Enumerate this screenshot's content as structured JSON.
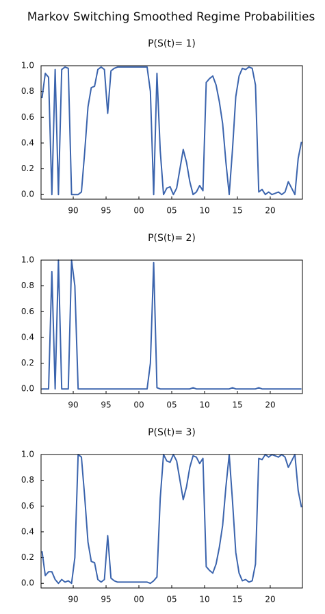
{
  "title": "Markov Switching Smoothed Regime Probabilities",
  "chart_data": [
    {
      "type": "line",
      "title": "P(S(t)= 1)",
      "x": [
        1985.25,
        1985.75,
        1986.25,
        1986.75,
        1987.25,
        1987.75,
        1988.25,
        1988.75,
        1989.25,
        1989.75,
        1990.25,
        1990.75,
        1991.25,
        1991.75,
        1992.25,
        1992.75,
        1993.25,
        1993.75,
        1994.25,
        1994.75,
        1995.25,
        1995.75,
        1996.25,
        1996.75,
        1997.25,
        1997.75,
        1998.25,
        1998.75,
        1999.25,
        1999.75,
        2000.25,
        2000.75,
        2001.25,
        2001.75,
        2002.25,
        2002.75,
        2003.25,
        2003.75,
        2004.25,
        2004.75,
        2005.25,
        2005.75,
        2006.25,
        2006.75,
        2007.25,
        2007.75,
        2008.25,
        2008.75,
        2009.25,
        2009.75,
        2010.25,
        2010.75,
        2011.25,
        2011.75,
        2012.25,
        2012.75,
        2013.25,
        2013.75,
        2014.25,
        2014.75,
        2015.25,
        2015.75,
        2016.25,
        2016.75,
        2017.25,
        2017.75,
        2018.25,
        2018.75,
        2019.25,
        2019.75,
        2020.25,
        2020.75,
        2021.25,
        2021.75,
        2022.25,
        2022.75,
        2023.25,
        2023.75,
        2024.25,
        2024.75
      ],
      "series": [
        {
          "color": "#3b64ad",
          "values": [
            0.75,
            0.94,
            0.91,
            0,
            0.97,
            0,
            0.97,
            0.99,
            0.98,
            0,
            0,
            0,
            0.02,
            0.33,
            0.68,
            0.83,
            0.84,
            0.97,
            0.99,
            0.97,
            0.63,
            0.96,
            0.98,
            0.99,
            0.99,
            0.99,
            0.99,
            0.99,
            0.99,
            0.99,
            0.99,
            0.99,
            0.99,
            0.8,
            0,
            0.94,
            0.34,
            0,
            0.05,
            0.06,
            0,
            0.05,
            0.2,
            0.35,
            0.25,
            0.1,
            0,
            0.02,
            0.07,
            0.03,
            0.87,
            0.9,
            0.92,
            0.85,
            0.72,
            0.55,
            0.25,
            0,
            0.35,
            0.76,
            0.92,
            0.98,
            0.97,
            0.99,
            0.98,
            0.85,
            0.02,
            0.04,
            0,
            0.02,
            0,
            0.01,
            0.02,
            0,
            0.02,
            0.1,
            0.05,
            0,
            0.28,
            0.41
          ]
        }
      ],
      "xlim": [
        1985.1,
        2024.9
      ],
      "ylim": [
        -0.02,
        1.0
      ],
      "xticks": [
        {
          "value": 1990,
          "label": "90"
        },
        {
          "value": 1995,
          "label": "95"
        },
        {
          "value": 2000,
          "label": "00"
        },
        {
          "value": 2005,
          "label": "05"
        },
        {
          "value": 2010,
          "label": "10"
        },
        {
          "value": 2015,
          "label": "15"
        },
        {
          "value": 2020,
          "label": "20"
        }
      ],
      "yticks": [
        {
          "value": 0,
          "label": "0.0"
        },
        0.2,
        0.4,
        0.6,
        0.8,
        {
          "value": 1,
          "label": "1.0"
        }
      ]
    },
    {
      "type": "line",
      "title": "P(S(t)= 2)",
      "x": [
        1985.25,
        1985.75,
        1986.25,
        1986.75,
        1987.25,
        1987.75,
        1988.25,
        1988.75,
        1989.25,
        1989.75,
        1990.25,
        1990.75,
        1991.25,
        1991.75,
        1992.25,
        1992.75,
        1993.25,
        1993.75,
        1994.25,
        1994.75,
        1995.25,
        1995.75,
        1996.25,
        1996.75,
        1997.25,
        1997.75,
        1998.25,
        1998.75,
        1999.25,
        1999.75,
        2000.25,
        2000.75,
        2001.25,
        2001.75,
        2002.25,
        2002.75,
        2003.25,
        2003.75,
        2004.25,
        2004.75,
        2005.25,
        2005.75,
        2006.25,
        2006.75,
        2007.25,
        2007.75,
        2008.25,
        2008.75,
        2009.25,
        2009.75,
        2010.25,
        2010.75,
        2011.25,
        2011.75,
        2012.25,
        2012.75,
        2013.25,
        2013.75,
        2014.25,
        2014.75,
        2015.25,
        2015.75,
        2016.25,
        2016.75,
        2017.25,
        2017.75,
        2018.25,
        2018.75,
        2019.25,
        2019.75,
        2020.25,
        2020.75,
        2021.25,
        2021.75,
        2022.25,
        2022.75,
        2023.25,
        2023.75,
        2024.25,
        2024.75
      ],
      "series": [
        {
          "color": "#3b64ad",
          "values": [
            0,
            0,
            0,
            0.91,
            0,
            1,
            0,
            0,
            0,
            1,
            0.8,
            0,
            0,
            0,
            0,
            0,
            0,
            0,
            0,
            0,
            0,
            0,
            0,
            0,
            0,
            0,
            0,
            0,
            0,
            0,
            0,
            0,
            0,
            0.2,
            0.98,
            0.01,
            0,
            0,
            0,
            0,
            0,
            0,
            0,
            0,
            0,
            0,
            0.01,
            0,
            0,
            0,
            0,
            0,
            0,
            0,
            0,
            0,
            0,
            0,
            0.01,
            0,
            0,
            0,
            0,
            0,
            0,
            0,
            0.01,
            0,
            0,
            0,
            0,
            0,
            0,
            0,
            0,
            0,
            0,
            0,
            0,
            0
          ]
        }
      ],
      "xlim": [
        1985.1,
        2024.9
      ],
      "ylim": [
        -0.02,
        1.0
      ],
      "xticks": [
        {
          "value": 1990,
          "label": "90"
        },
        {
          "value": 1995,
          "label": "95"
        },
        {
          "value": 2000,
          "label": "00"
        },
        {
          "value": 2005,
          "label": "05"
        },
        {
          "value": 2010,
          "label": "10"
        },
        {
          "value": 2015,
          "label": "15"
        },
        {
          "value": 2020,
          "label": "20"
        }
      ],
      "yticks": [
        {
          "value": 0,
          "label": "0.0"
        },
        0.2,
        0.4,
        0.6,
        0.8,
        {
          "value": 1,
          "label": "1.0"
        }
      ]
    },
    {
      "type": "line",
      "title": "P(S(t)= 3)",
      "x": [
        1985.25,
        1985.75,
        1986.25,
        1986.75,
        1987.25,
        1987.75,
        1988.25,
        1988.75,
        1989.25,
        1989.75,
        1990.25,
        1990.75,
        1991.25,
        1991.75,
        1992.25,
        1992.75,
        1993.25,
        1993.75,
        1994.25,
        1994.75,
        1995.25,
        1995.75,
        1996.25,
        1996.75,
        1997.25,
        1997.75,
        1998.25,
        1998.75,
        1999.25,
        1999.75,
        2000.25,
        2000.75,
        2001.25,
        2001.75,
        2002.25,
        2002.75,
        2003.25,
        2003.75,
        2004.25,
        2004.75,
        2005.25,
        2005.75,
        2006.25,
        2006.75,
        2007.25,
        2007.75,
        2008.25,
        2008.75,
        2009.25,
        2009.75,
        2010.25,
        2010.75,
        2011.25,
        2011.75,
        2012.25,
        2012.75,
        2013.25,
        2013.75,
        2014.25,
        2014.75,
        2015.25,
        2015.75,
        2016.25,
        2016.75,
        2017.25,
        2017.75,
        2018.25,
        2018.75,
        2019.25,
        2019.75,
        2020.25,
        2020.75,
        2021.25,
        2021.75,
        2022.25,
        2022.75,
        2023.25,
        2023.75,
        2024.25,
        2024.75
      ],
      "series": [
        {
          "color": "#3b64ad",
          "values": [
            0.25,
            0.06,
            0.09,
            0.09,
            0.03,
            0,
            0.03,
            0.01,
            0.02,
            0,
            0.2,
            1,
            0.98,
            0.67,
            0.32,
            0.17,
            0.16,
            0.03,
            0.01,
            0.03,
            0.37,
            0.04,
            0.02,
            0.01,
            0.01,
            0.01,
            0.01,
            0.01,
            0.01,
            0.01,
            0.01,
            0.01,
            0.01,
            0,
            0.02,
            0.05,
            0.66,
            1,
            0.95,
            0.94,
            1,
            0.95,
            0.8,
            0.65,
            0.75,
            0.9,
            0.99,
            0.98,
            0.93,
            0.97,
            0.13,
            0.1,
            0.08,
            0.15,
            0.28,
            0.45,
            0.75,
            1,
            0.64,
            0.24,
            0.08,
            0.02,
            0.03,
            0.01,
            0.02,
            0.15,
            0.97,
            0.96,
            1,
            0.98,
            1,
            0.99,
            0.98,
            1,
            0.98,
            0.9,
            0.95,
            1,
            0.72,
            0.59
          ]
        }
      ],
      "xlim": [
        1985.1,
        2024.9
      ],
      "ylim": [
        -0.02,
        1.0
      ],
      "xticks": [
        {
          "value": 1990,
          "label": "90"
        },
        {
          "value": 1995,
          "label": "95"
        },
        {
          "value": 2000,
          "label": "00"
        },
        {
          "value": 2005,
          "label": "05"
        },
        {
          "value": 2010,
          "label": "10"
        },
        {
          "value": 2015,
          "label": "15"
        },
        {
          "value": 2020,
          "label": "20"
        }
      ],
      "yticks": [
        {
          "value": 0,
          "label": "0.0"
        },
        0.2,
        0.4,
        0.6,
        0.8,
        {
          "value": 1,
          "label": "1.0"
        }
      ]
    }
  ]
}
